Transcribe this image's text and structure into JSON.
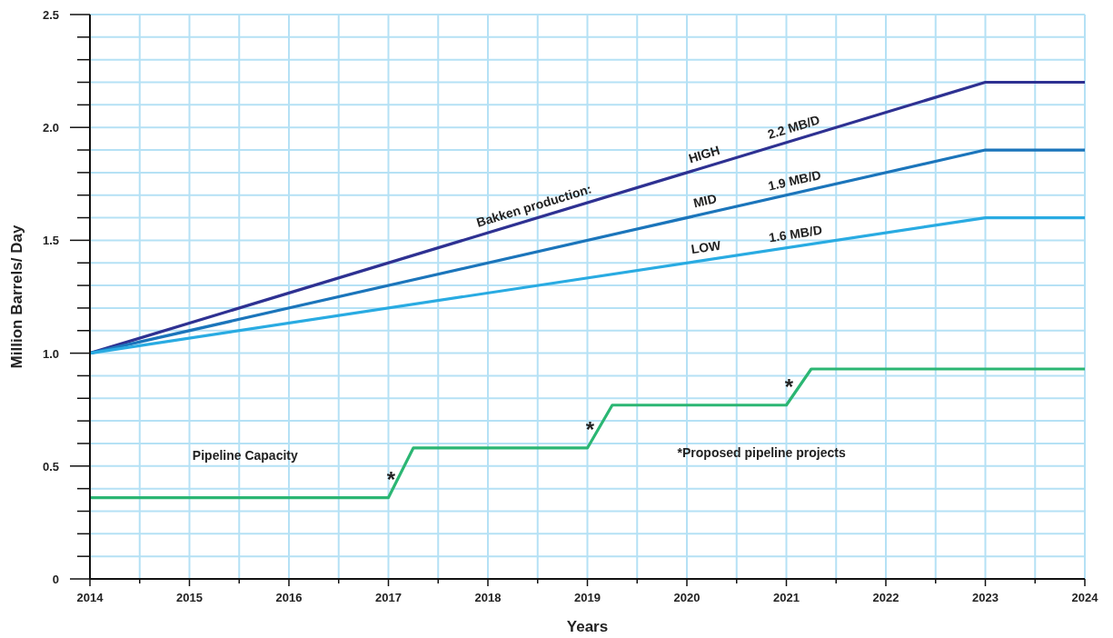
{
  "chart_data": {
    "type": "line",
    "xlabel": "Years",
    "ylabel": "Million Barrels/ Day",
    "grid": true,
    "xlim": [
      2014,
      2024
    ],
    "ylim": [
      0,
      2.5
    ],
    "xticks": [
      2014,
      {
        "value": 2014.5,
        "label": null
      },
      2015,
      {
        "value": 2015.5,
        "label": null
      },
      2016,
      {
        "value": 2016.5,
        "label": null
      },
      2017,
      {
        "value": 2017.5,
        "label": null
      },
      2018,
      {
        "value": 2018.5,
        "label": null
      },
      2019,
      {
        "value": 2019.5,
        "label": null
      },
      2020,
      {
        "value": 2020.5,
        "label": null
      },
      2021,
      {
        "value": 2021.5,
        "label": null
      },
      2022,
      {
        "value": 2022.5,
        "label": null
      },
      2023,
      {
        "value": 2023.5,
        "label": null
      },
      2024
    ],
    "yticks": [
      0,
      {
        "value": 0.1,
        "label": null
      },
      {
        "value": 0.2,
        "label": null
      },
      {
        "value": 0.3,
        "label": null
      },
      {
        "value": 0.4,
        "label": null
      },
      0.5,
      {
        "value": 0.6,
        "label": null
      },
      {
        "value": 0.7,
        "label": null
      },
      {
        "value": 0.8,
        "label": null
      },
      {
        "value": 0.9,
        "label": null
      },
      {
        "value": 1,
        "label": "1.0"
      },
      {
        "value": 1.1,
        "label": null
      },
      {
        "value": 1.2,
        "label": null
      },
      {
        "value": 1.3,
        "label": null
      },
      {
        "value": 1.4,
        "label": null
      },
      1.5,
      {
        "value": 1.6,
        "label": null
      },
      {
        "value": 1.7,
        "label": null
      },
      {
        "value": 1.8,
        "label": null
      },
      {
        "value": 1.9,
        "label": null
      },
      {
        "value": 2,
        "label": "2.0"
      },
      {
        "value": 2.1,
        "label": null
      },
      {
        "value": 2.2,
        "label": null
      },
      {
        "value": 2.3,
        "label": null
      },
      {
        "value": 2.4,
        "label": null
      },
      2.5
    ],
    "series": [
      {
        "name": "HIGH",
        "color": "#2e3192",
        "x": [
          2014,
          2023,
          2024
        ],
        "values": [
          1.0,
          2.2,
          2.2
        ]
      },
      {
        "name": "MID",
        "color": "#1b75bb",
        "x": [
          2014,
          2023,
          2024
        ],
        "values": [
          1.0,
          1.9,
          1.9
        ]
      },
      {
        "name": "LOW",
        "color": "#29abe2",
        "x": [
          2014,
          2023,
          2024
        ],
        "values": [
          1.0,
          1.6,
          1.6
        ]
      },
      {
        "name": "Pipeline Capacity",
        "color": "#2bb673",
        "x": [
          2014,
          2017,
          2017.25,
          2019,
          2019.25,
          2021,
          2021.25,
          2024
        ],
        "values": [
          0.36,
          0.36,
          0.58,
          0.58,
          0.77,
          0.77,
          0.93,
          0.93
        ]
      }
    ],
    "annotations": [
      "Bakken production:",
      "2.2 MB/D",
      "1.9 MB/D",
      "1.6 MB/D",
      {
        "text": "*",
        "x": 2017,
        "y": 0.36
      },
      {
        "text": "*",
        "x": 2019,
        "y": 0.58
      },
      {
        "text": "*",
        "x": 2021,
        "y": 0.77
      },
      "*Proposed pipeline projects"
    ]
  }
}
